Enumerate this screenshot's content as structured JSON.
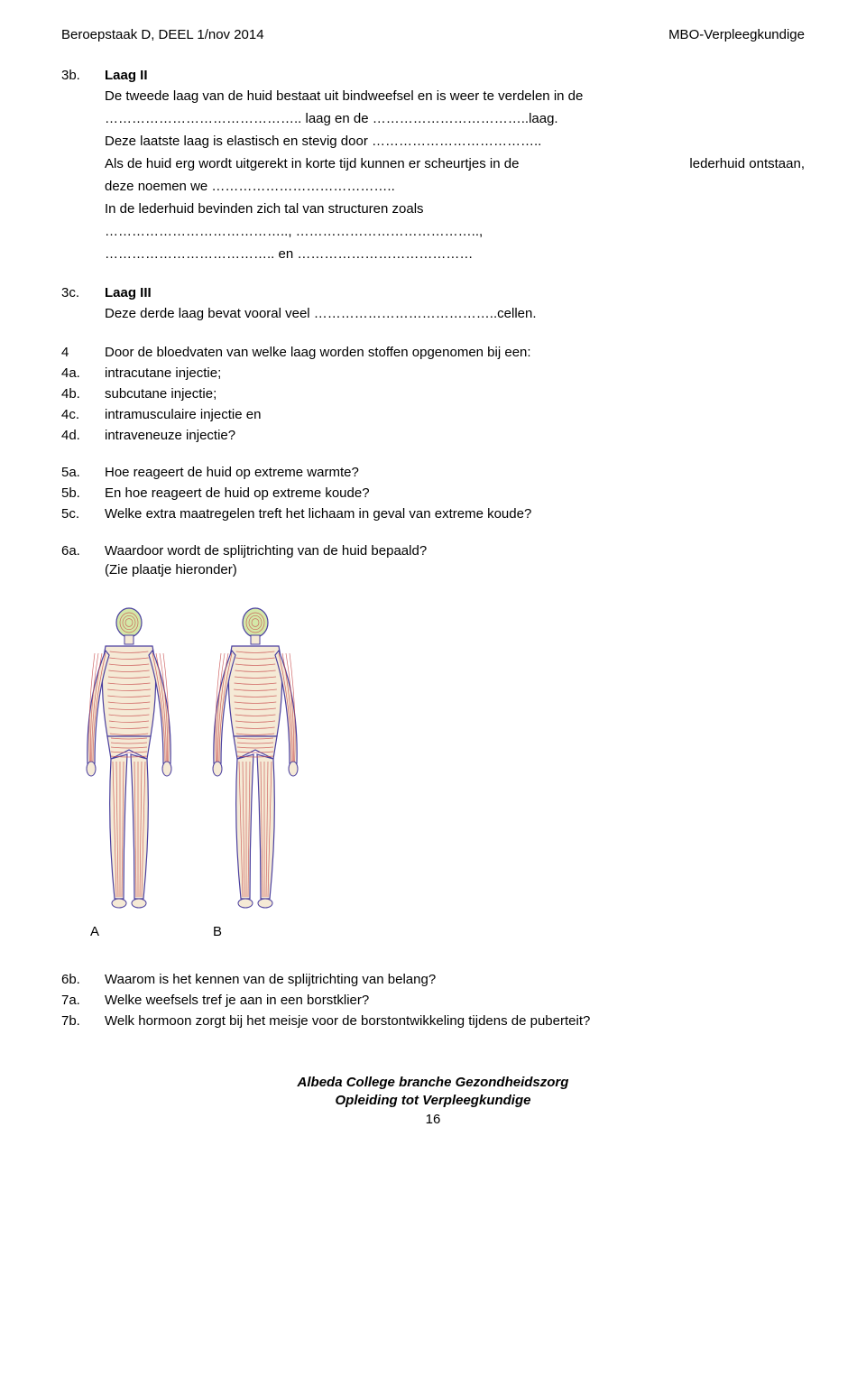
{
  "header": {
    "left": "Beroepstaak D, DEEL 1/nov 2014",
    "right": "MBO-Verpleegkundige"
  },
  "q3b": {
    "num": "3b.",
    "title": "Laag II",
    "line1": "De tweede laag van de huid bestaat uit bindweefsel en is weer te verdelen in de",
    "line2": "…………………………………….. laag en de ……………………………..laag.",
    "line3": "Deze laatste laag is elastisch en stevig door ………………………………..",
    "line4_pre": "Als de huid erg wordt uitgerekt in korte tijd kunnen er scheurtjes in de",
    "line4_suf": "lederhuid ontstaan,",
    "line5": "deze noemen we …………………………………..",
    "line6": "In de lederhuid bevinden zich tal van structuren zoals",
    "line7": "………………………………….., …………………………………..,",
    "line8": "……………………………….. en …………………………………"
  },
  "q3c": {
    "num": "3c.",
    "title": "Laag III",
    "line1": "Deze derde laag bevat vooral veel …………………………………..cellen."
  },
  "q4": {
    "n4": "4",
    "t4": "Door de bloedvaten van welke laag worden stoffen opgenomen bij een:",
    "n4a": "4a.",
    "t4a": "intracutane injectie;",
    "n4b": "4b.",
    "t4b": "subcutane injectie;",
    "n4c": "4c.",
    "t4c": "intramusculaire injectie en",
    "n4d": "4d.",
    "t4d": "intraveneuze injectie?"
  },
  "q5": {
    "n5a": "5a.",
    "t5a": "Hoe reageert de huid op extreme warmte?",
    "n5b": "5b.",
    "t5b": "En hoe reageert de huid op extreme koude?",
    "n5c": "5c.",
    "t5c": "Welke extra maatregelen treft het lichaam in geval van extreme  koude?"
  },
  "q6a": {
    "num": "6a.",
    "line1": "Waardoor wordt de splijtrichting van de huid bepaald?",
    "line2": "(Zie plaatje hieronder)"
  },
  "figure": {
    "label_a": "A",
    "label_b": "B",
    "outline_color": "#4a3f9f",
    "fill_color": "#f5ead6",
    "line_color": "#c94f4f",
    "head_color": "#d4e8a8"
  },
  "q6b7": {
    "n6b": "6b.",
    "t6b": "Waarom is het kennen van de splijtrichting van belang?",
    "n7a": "7a.",
    "t7a": "Welke weefsels tref je aan in een borstklier?",
    "n7b": "7b.",
    "t7b": "Welk hormoon zorgt bij het meisje voor de borstontwikkeling tijdens de puberteit?"
  },
  "footer": {
    "line1": "Albeda College branche Gezondheidszorg",
    "line2": "Opleiding tot Verpleegkundige",
    "page": "16"
  }
}
